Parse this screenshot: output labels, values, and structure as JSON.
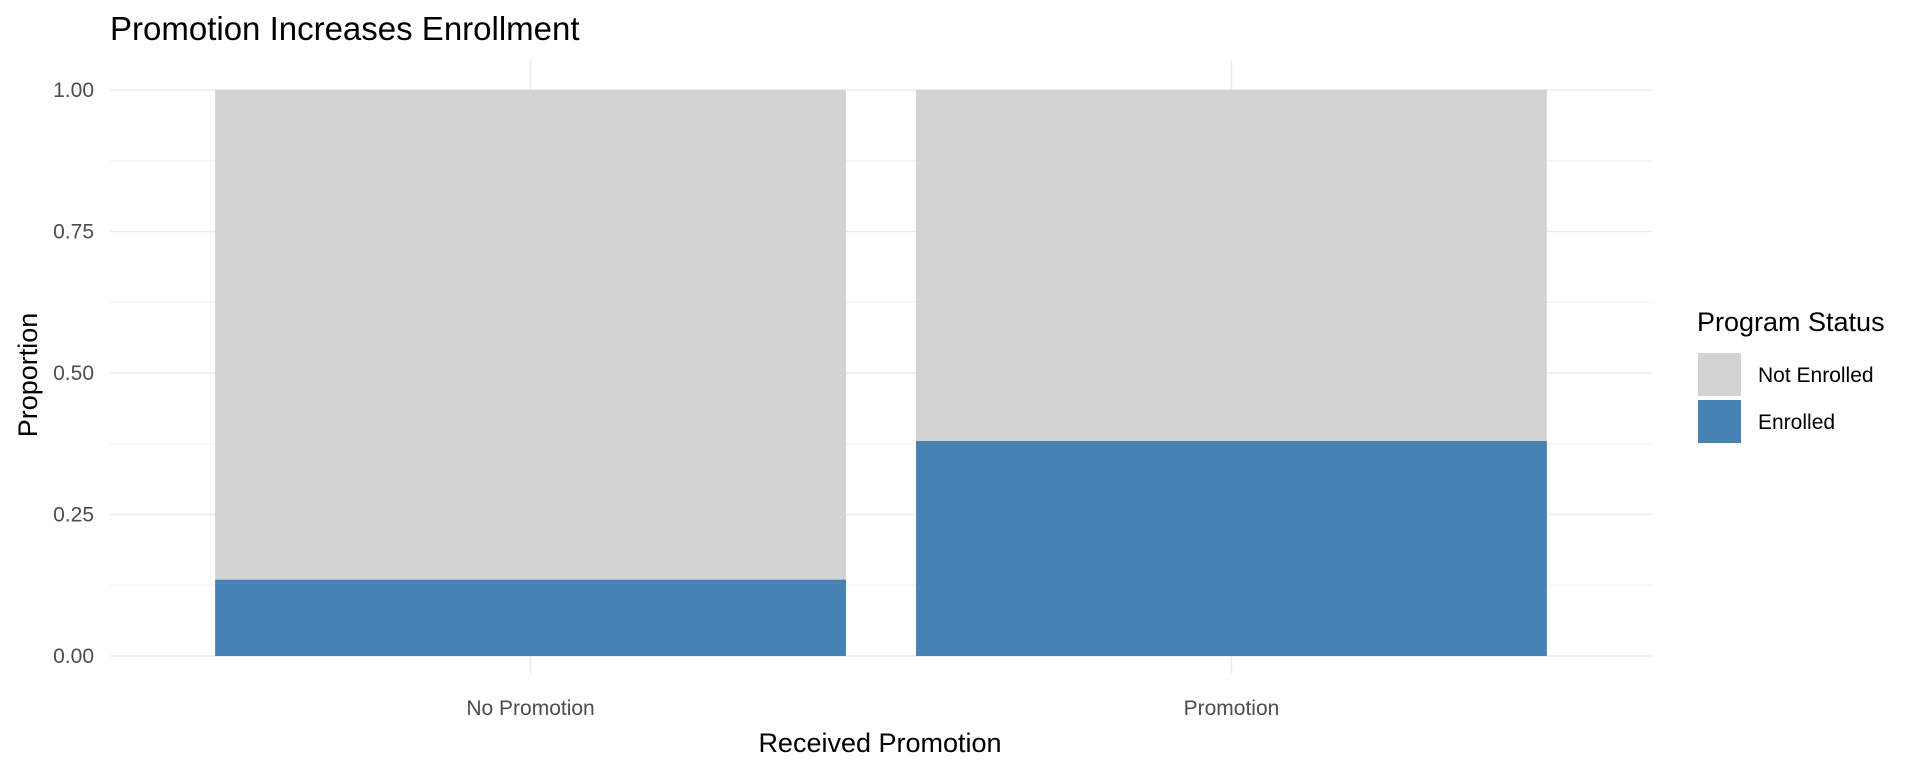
{
  "chart_data": {
    "type": "bar",
    "stacked": true,
    "title": "Promotion Increases Enrollment",
    "xlabel": "Received Promotion",
    "ylabel": "Proportion",
    "categories": [
      "No Promotion",
      "Promotion"
    ],
    "series": [
      {
        "name": "Not Enrolled",
        "values": [
          0.865,
          0.62
        ],
        "color": "#d3d3d3"
      },
      {
        "name": "Enrolled",
        "values": [
          0.135,
          0.38
        ],
        "color": "#4682b4"
      }
    ],
    "ylim": [
      0,
      1
    ],
    "yticks": [
      "0.00",
      "0.25",
      "0.50",
      "0.75",
      "1.00"
    ],
    "grid": true,
    "legend": {
      "title": "Program Status",
      "position": "right",
      "entries": [
        "Not Enrolled",
        "Enrolled"
      ]
    }
  }
}
